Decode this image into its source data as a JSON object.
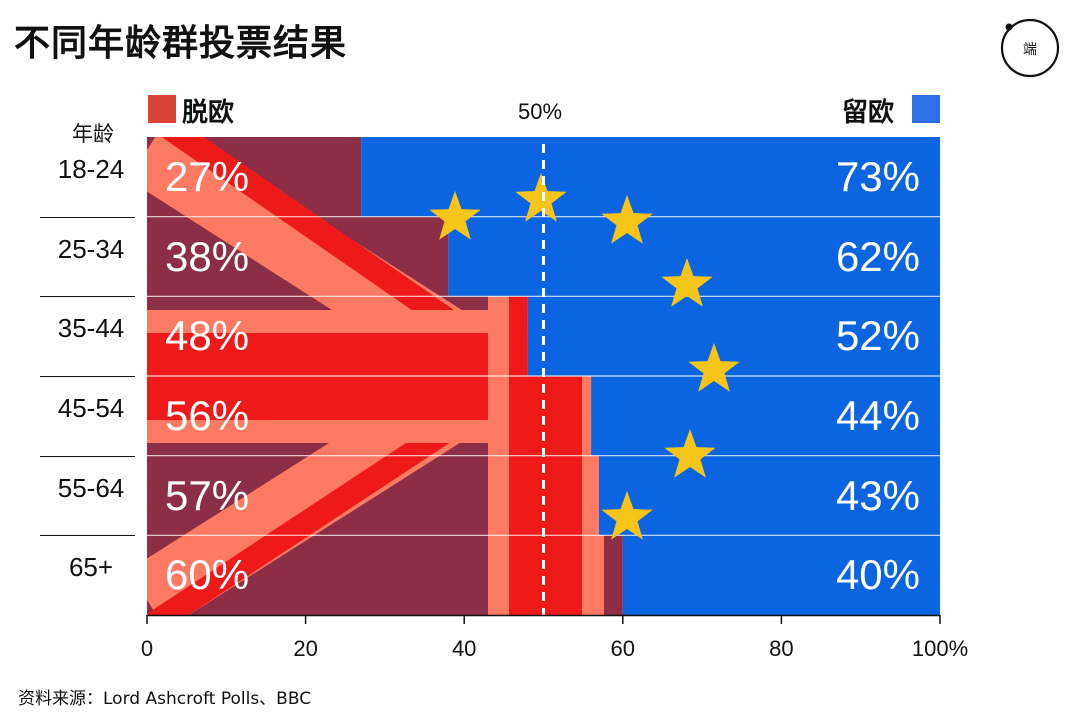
{
  "title": "不同年龄群投票结果",
  "legend": {
    "leave": {
      "label": "脱欧",
      "color": "#dc4437"
    },
    "remain": {
      "label": "留欧",
      "color": "#2e6ee6"
    }
  },
  "reference_label": "50%",
  "y_axis_title": "年龄",
  "source": "资料来源：Lord Ashcroft Polls、BBC",
  "chart_data": {
    "type": "bar",
    "stacked": true,
    "orientation": "horizontal",
    "categories": [
      "18-24",
      "25-34",
      "35-44",
      "45-54",
      "55-64",
      "65+"
    ],
    "series": [
      {
        "name": "脱欧",
        "values": [
          27,
          38,
          48,
          56,
          57,
          60
        ],
        "labels": [
          "27%",
          "38%",
          "48%",
          "56%",
          "57%",
          "60%"
        ],
        "color": "#dc4437"
      },
      {
        "name": "留欧",
        "values": [
          73,
          62,
          52,
          44,
          43,
          40
        ],
        "labels": [
          "73%",
          "62%",
          "52%",
          "44%",
          "43%",
          "40%"
        ],
        "color": "#0b65e0"
      }
    ],
    "reference_line": 50,
    "xlim": [
      0,
      100
    ],
    "x_ticks": [
      "0",
      "20",
      "40",
      "60",
      "80",
      "100%"
    ],
    "x_tick_values": [
      0,
      20,
      40,
      60,
      80,
      100
    ]
  }
}
